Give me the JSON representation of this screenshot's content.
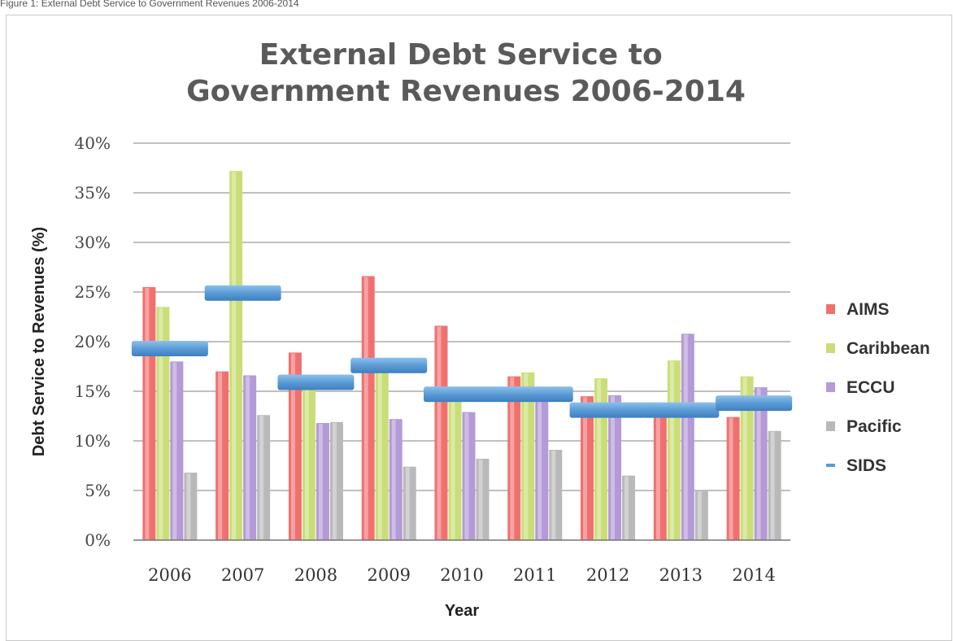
{
  "header_text": "Figure 1: External Debt Service to Government Revenues 2006-2014",
  "chart_data": {
    "type": "bar",
    "title": "External Debt Service to\nGovernment Revenues 2006-2014",
    "xlabel": "Year",
    "ylabel": "Debt Service to Revenues (%)",
    "ylim": [
      0,
      40
    ],
    "yticks": [
      "0%",
      "5%",
      "10%",
      "15%",
      "20%",
      "25%",
      "30%",
      "35%",
      "40%"
    ],
    "categories": [
      "2006",
      "2007",
      "2008",
      "2009",
      "2010",
      "2011",
      "2012",
      "2013",
      "2014"
    ],
    "grid": "horizontal",
    "legend_position": "right",
    "series": [
      {
        "name": "AIMS",
        "kind": "bar",
        "color": "#f07070",
        "values": [
          25.5,
          17.0,
          18.9,
          26.6,
          21.6,
          16.5,
          14.5,
          13.2,
          12.4
        ]
      },
      {
        "name": "Caribbean",
        "kind": "bar",
        "color": "#c9de78",
        "values": [
          23.5,
          37.2,
          16.4,
          17.5,
          14.4,
          16.9,
          16.3,
          18.1,
          16.5
        ]
      },
      {
        "name": "ECCU",
        "kind": "bar",
        "color": "#b49ad6",
        "values": [
          18.0,
          16.6,
          11.8,
          12.2,
          12.9,
          14.4,
          14.6,
          20.8,
          15.4
        ]
      },
      {
        "name": "Pacific",
        "kind": "bar",
        "color": "#b9b9b9",
        "values": [
          6.8,
          12.6,
          11.9,
          7.4,
          8.2,
          9.1,
          6.5,
          5.0,
          11.0
        ]
      },
      {
        "name": "SIDS",
        "kind": "marker",
        "color": "#5b9bd5",
        "values": [
          19.3,
          24.9,
          15.9,
          17.6,
          14.7,
          14.7,
          13.1,
          13.1,
          13.8
        ]
      }
    ]
  }
}
